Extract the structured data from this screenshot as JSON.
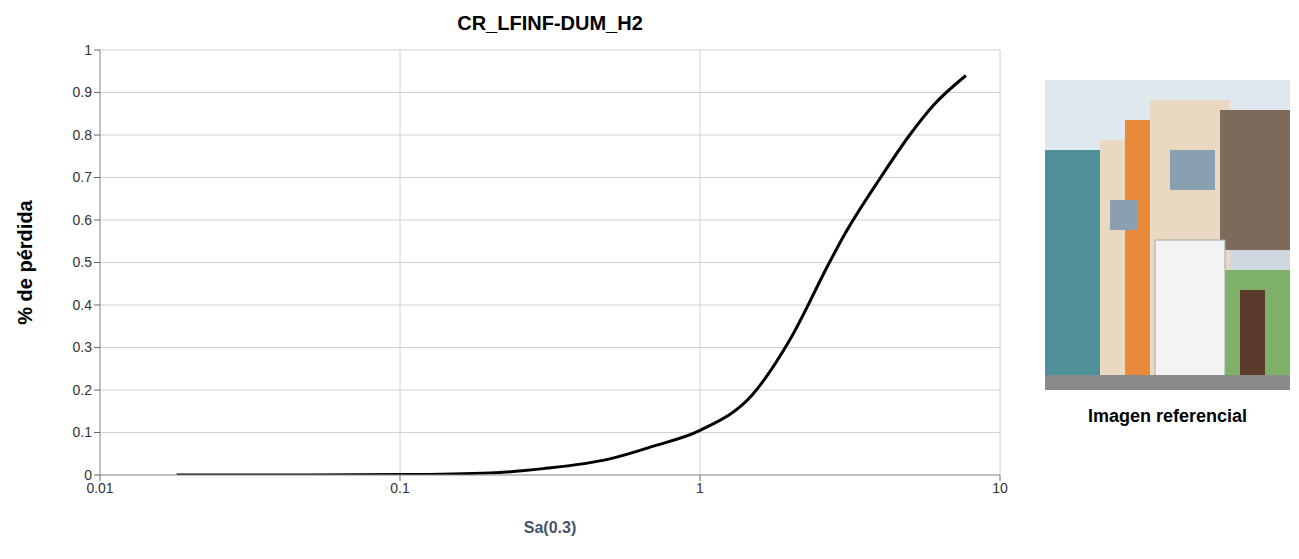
{
  "chart_data": {
    "type": "line",
    "title": "CR_LFINF-DUM_H2",
    "x_label": "Sa(0.3)",
    "y_label": "% de pérdida",
    "x": [
      0.018,
      0.05,
      0.1,
      0.2,
      0.3,
      0.5,
      0.7,
      1,
      1.5,
      2,
      2.7,
      3,
      4,
      5,
      6,
      7.7
    ],
    "series": [
      {
        "name": "CR_LFINF-DUM_H2",
        "color": "#000000",
        "values": [
          0,
          0,
          0.001,
          0.005,
          0.015,
          0.038,
          0.068,
          0.105,
          0.19,
          0.32,
          0.5,
          0.56,
          0.7,
          0.8,
          0.87,
          0.94
        ]
      }
    ],
    "xlim": [
      0.01,
      10
    ],
    "xticks": [
      0.01,
      0.1,
      1,
      10
    ],
    "ylim": [
      0,
      1
    ],
    "yticks": [
      0,
      0.1,
      0.2,
      0.3,
      0.4,
      0.5,
      0.6,
      0.7,
      0.8,
      0.9,
      1
    ],
    "log": "x",
    "grid": true
  },
  "image": {
    "caption": "Imagen referencial"
  }
}
